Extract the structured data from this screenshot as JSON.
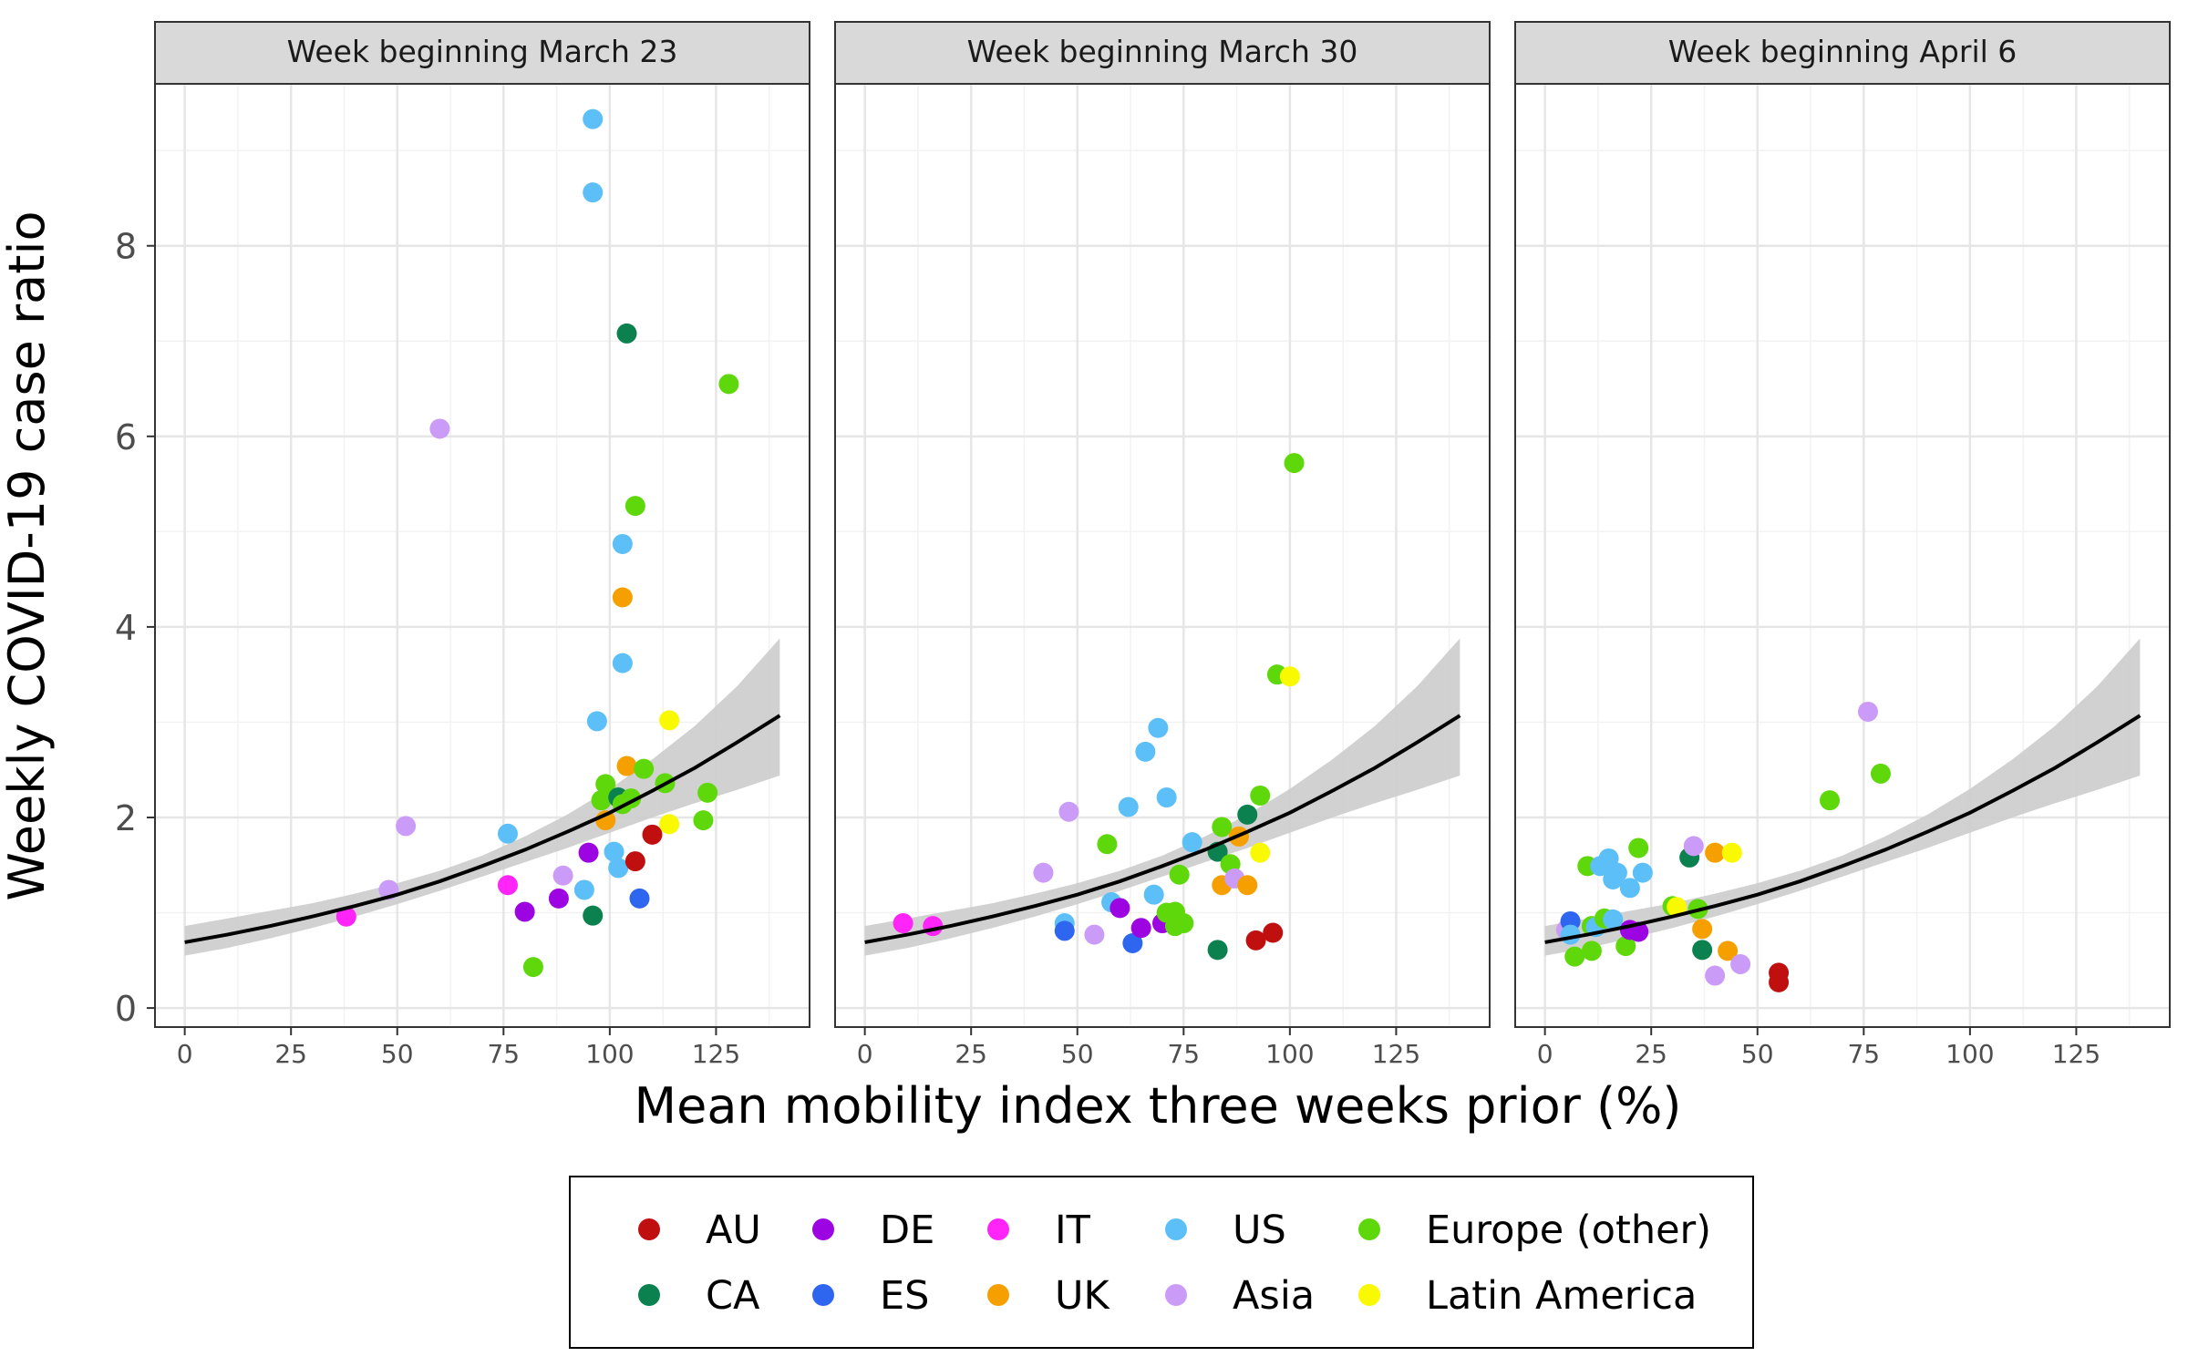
{
  "chart_data": {
    "type": "scatter",
    "xlabel": "Mean mobility index three weeks prior (%)",
    "ylabel": "Weekly COVID-19 case ratio",
    "xlim": [
      -7,
      147
    ],
    "ylim": [
      -0.2,
      9.7
    ],
    "x_ticks": [
      0,
      25,
      50,
      75,
      100,
      125
    ],
    "y_ticks": [
      0,
      2,
      4,
      6,
      8
    ],
    "grid": true,
    "legend_position": "bottom",
    "colors": {
      "AU": "#c00f0f",
      "CA": "#0b8150",
      "DE": "#9d04e2",
      "ES": "#2f66f0",
      "IT": "#ff24f7",
      "UK": "#f5a000",
      "US": "#5cbff8",
      "Asia": "#cb9cf7",
      "Europe (other)": "#5fd80b",
      "Latin America": "#f9f902",
      "fit_line": "#000000",
      "ribbon": "#cccccc",
      "strip": "#d9d9d9"
    },
    "legend": [
      {
        "key": "AU",
        "label": "AU"
      },
      {
        "key": "CA",
        "label": "CA"
      },
      {
        "key": "DE",
        "label": "DE"
      },
      {
        "key": "ES",
        "label": "ES"
      },
      {
        "key": "IT",
        "label": "IT"
      },
      {
        "key": "UK",
        "label": "UK"
      },
      {
        "key": "US",
        "label": "US"
      },
      {
        "key": "Asia",
        "label": "Asia"
      },
      {
        "key": "Europe (other)",
        "label": "Europe (other)"
      },
      {
        "key": "Latin America",
        "label": "Latin America"
      }
    ],
    "fit": {
      "x": [
        0,
        10,
        20,
        30,
        40,
        50,
        60,
        70,
        80,
        90,
        100,
        110,
        120,
        130,
        140
      ],
      "y": [
        0.69,
        0.77,
        0.86,
        0.96,
        1.07,
        1.19,
        1.33,
        1.49,
        1.66,
        1.85,
        2.05,
        2.28,
        2.52,
        2.79,
        3.07
      ],
      "lower": [
        0.55,
        0.63,
        0.73,
        0.84,
        0.96,
        1.09,
        1.23,
        1.38,
        1.53,
        1.68,
        1.84,
        2.0,
        2.15,
        2.29,
        2.44
      ],
      "upper": [
        0.86,
        0.94,
        1.02,
        1.1,
        1.2,
        1.31,
        1.44,
        1.6,
        1.8,
        2.03,
        2.3,
        2.61,
        2.96,
        3.38,
        3.88
      ]
    },
    "panels": [
      {
        "title": "Week beginning March 23",
        "points": [
          {
            "x": 38,
            "y": 0.96,
            "g": "IT"
          },
          {
            "x": 48,
            "y": 1.24,
            "g": "Asia"
          },
          {
            "x": 52,
            "y": 1.91,
            "g": "Asia"
          },
          {
            "x": 60,
            "y": 6.08,
            "g": "Asia"
          },
          {
            "x": 76,
            "y": 1.29,
            "g": "IT"
          },
          {
            "x": 76,
            "y": 1.83,
            "g": "US"
          },
          {
            "x": 80,
            "y": 1.01,
            "g": "DE"
          },
          {
            "x": 82,
            "y": 0.43,
            "g": "Europe (other)"
          },
          {
            "x": 88,
            "y": 1.15,
            "g": "DE"
          },
          {
            "x": 89,
            "y": 1.39,
            "g": "Asia"
          },
          {
            "x": 94,
            "y": 1.24,
            "g": "US"
          },
          {
            "x": 95,
            "y": 1.63,
            "g": "DE"
          },
          {
            "x": 96,
            "y": 9.33,
            "g": "US"
          },
          {
            "x": 96,
            "y": 8.56,
            "g": "US"
          },
          {
            "x": 96,
            "y": 0.97,
            "g": "CA"
          },
          {
            "x": 97,
            "y": 3.01,
            "g": "US"
          },
          {
            "x": 98,
            "y": 2.18,
            "g": "Europe (other)"
          },
          {
            "x": 99,
            "y": 2.35,
            "g": "Europe (other)"
          },
          {
            "x": 99,
            "y": 1.97,
            "g": "UK"
          },
          {
            "x": 101,
            "y": 1.64,
            "g": "US"
          },
          {
            "x": 102,
            "y": 1.47,
            "g": "US"
          },
          {
            "x": 102,
            "y": 2.21,
            "g": "CA"
          },
          {
            "x": 103,
            "y": 4.31,
            "g": "UK"
          },
          {
            "x": 103,
            "y": 4.87,
            "g": "US"
          },
          {
            "x": 103,
            "y": 3.62,
            "g": "US"
          },
          {
            "x": 103,
            "y": 2.14,
            "g": "Europe (other)"
          },
          {
            "x": 104,
            "y": 7.08,
            "g": "CA"
          },
          {
            "x": 104,
            "y": 2.54,
            "g": "UK"
          },
          {
            "x": 105,
            "y": 2.2,
            "g": "Europe (other)"
          },
          {
            "x": 106,
            "y": 5.27,
            "g": "Europe (other)"
          },
          {
            "x": 106,
            "y": 1.54,
            "g": "AU"
          },
          {
            "x": 107,
            "y": 1.15,
            "g": "ES"
          },
          {
            "x": 108,
            "y": 2.51,
            "g": "Europe (other)"
          },
          {
            "x": 110,
            "y": 1.82,
            "g": "AU"
          },
          {
            "x": 113,
            "y": 2.36,
            "g": "Europe (other)"
          },
          {
            "x": 114,
            "y": 1.93,
            "g": "Latin America"
          },
          {
            "x": 114,
            "y": 3.02,
            "g": "Latin America"
          },
          {
            "x": 122,
            "y": 1.97,
            "g": "Europe (other)"
          },
          {
            "x": 123,
            "y": 2.26,
            "g": "Europe (other)"
          },
          {
            "x": 128,
            "y": 6.55,
            "g": "Europe (other)"
          }
        ]
      },
      {
        "title": "Week beginning March 30",
        "points": [
          {
            "x": 9,
            "y": 0.89,
            "g": "IT"
          },
          {
            "x": 16,
            "y": 0.86,
            "g": "IT"
          },
          {
            "x": 42,
            "y": 1.42,
            "g": "Asia"
          },
          {
            "x": 47,
            "y": 0.89,
            "g": "US"
          },
          {
            "x": 47,
            "y": 0.81,
            "g": "ES"
          },
          {
            "x": 48,
            "y": 2.06,
            "g": "Asia"
          },
          {
            "x": 54,
            "y": 0.77,
            "g": "Asia"
          },
          {
            "x": 57,
            "y": 1.72,
            "g": "Europe (other)"
          },
          {
            "x": 58,
            "y": 1.11,
            "g": "US"
          },
          {
            "x": 60,
            "y": 1.05,
            "g": "DE"
          },
          {
            "x": 62,
            "y": 2.11,
            "g": "US"
          },
          {
            "x": 63,
            "y": 0.68,
            "g": "ES"
          },
          {
            "x": 65,
            "y": 0.84,
            "g": "DE"
          },
          {
            "x": 66,
            "y": 2.69,
            "g": "US"
          },
          {
            "x": 68,
            "y": 1.19,
            "g": "US"
          },
          {
            "x": 69,
            "y": 2.94,
            "g": "US"
          },
          {
            "x": 70,
            "y": 0.89,
            "g": "DE"
          },
          {
            "x": 71,
            "y": 1.0,
            "g": "Europe (other)"
          },
          {
            "x": 71,
            "y": 2.21,
            "g": "US"
          },
          {
            "x": 73,
            "y": 0.86,
            "g": "Europe (other)"
          },
          {
            "x": 73,
            "y": 1.01,
            "g": "Europe (other)"
          },
          {
            "x": 74,
            "y": 1.4,
            "g": "Europe (other)"
          },
          {
            "x": 75,
            "y": 0.89,
            "g": "Europe (other)"
          },
          {
            "x": 77,
            "y": 1.74,
            "g": "US"
          },
          {
            "x": 83,
            "y": 0.61,
            "g": "CA"
          },
          {
            "x": 83,
            "y": 1.64,
            "g": "CA"
          },
          {
            "x": 84,
            "y": 1.29,
            "g": "UK"
          },
          {
            "x": 84,
            "y": 1.9,
            "g": "Europe (other)"
          },
          {
            "x": 86,
            "y": 1.51,
            "g": "Europe (other)"
          },
          {
            "x": 87,
            "y": 1.36,
            "g": "Asia"
          },
          {
            "x": 88,
            "y": 1.8,
            "g": "UK"
          },
          {
            "x": 90,
            "y": 1.29,
            "g": "UK"
          },
          {
            "x": 90,
            "y": 2.03,
            "g": "CA"
          },
          {
            "x": 92,
            "y": 0.71,
            "g": "AU"
          },
          {
            "x": 93,
            "y": 2.23,
            "g": "Europe (other)"
          },
          {
            "x": 93,
            "y": 1.63,
            "g": "Latin America"
          },
          {
            "x": 96,
            "y": 0.79,
            "g": "AU"
          },
          {
            "x": 97,
            "y": 3.5,
            "g": "Europe (other)"
          },
          {
            "x": 100,
            "y": 3.48,
            "g": "Latin America"
          },
          {
            "x": 101,
            "y": 5.72,
            "g": "Europe (other)"
          }
        ]
      },
      {
        "title": "Week beginning April 6",
        "points": [
          {
            "x": 5,
            "y": 0.82,
            "g": "Asia"
          },
          {
            "x": 6,
            "y": 0.91,
            "g": "ES"
          },
          {
            "x": 6,
            "y": 0.77,
            "g": "US"
          },
          {
            "x": 7,
            "y": 0.54,
            "g": "Europe (other)"
          },
          {
            "x": 10,
            "y": 1.49,
            "g": "Europe (other)"
          },
          {
            "x": 11,
            "y": 0.86,
            "g": "Europe (other)"
          },
          {
            "x": 11,
            "y": 0.6,
            "g": "Europe (other)"
          },
          {
            "x": 12,
            "y": 0.85,
            "g": "US"
          },
          {
            "x": 13,
            "y": 1.49,
            "g": "US"
          },
          {
            "x": 14,
            "y": 0.94,
            "g": "Europe (other)"
          },
          {
            "x": 15,
            "y": 1.57,
            "g": "US"
          },
          {
            "x": 16,
            "y": 1.35,
            "g": "US"
          },
          {
            "x": 16,
            "y": 0.93,
            "g": "US"
          },
          {
            "x": 17,
            "y": 1.42,
            "g": "US"
          },
          {
            "x": 19,
            "y": 0.65,
            "g": "Europe (other)"
          },
          {
            "x": 20,
            "y": 1.26,
            "g": "US"
          },
          {
            "x": 20,
            "y": 0.82,
            "g": "DE"
          },
          {
            "x": 22,
            "y": 1.68,
            "g": "Europe (other)"
          },
          {
            "x": 22,
            "y": 0.8,
            "g": "DE"
          },
          {
            "x": 23,
            "y": 1.42,
            "g": "US"
          },
          {
            "x": 30,
            "y": 1.07,
            "g": "Europe (other)"
          },
          {
            "x": 31,
            "y": 1.06,
            "g": "Latin America"
          },
          {
            "x": 34,
            "y": 1.58,
            "g": "CA"
          },
          {
            "x": 35,
            "y": 1.7,
            "g": "Asia"
          },
          {
            "x": 36,
            "y": 1.04,
            "g": "Europe (other)"
          },
          {
            "x": 37,
            "y": 0.83,
            "g": "UK"
          },
          {
            "x": 37,
            "y": 0.61,
            "g": "CA"
          },
          {
            "x": 40,
            "y": 1.63,
            "g": "UK"
          },
          {
            "x": 40,
            "y": 0.34,
            "g": "Asia"
          },
          {
            "x": 43,
            "y": 0.6,
            "g": "UK"
          },
          {
            "x": 44,
            "y": 1.63,
            "g": "Latin America"
          },
          {
            "x": 46,
            "y": 0.46,
            "g": "Asia"
          },
          {
            "x": 55,
            "y": 0.37,
            "g": "AU"
          },
          {
            "x": 55,
            "y": 0.27,
            "g": "AU"
          },
          {
            "x": 67,
            "y": 2.18,
            "g": "Europe (other)"
          },
          {
            "x": 76,
            "y": 3.11,
            "g": "Asia"
          },
          {
            "x": 79,
            "y": 2.46,
            "g": "Europe (other)"
          }
        ]
      }
    ]
  }
}
